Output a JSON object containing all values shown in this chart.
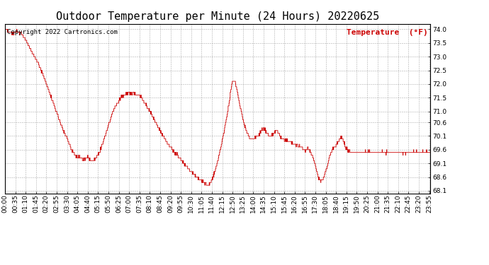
{
  "title": "Outdoor Temperature per Minute (24 Hours) 20220625",
  "copyright_text": "Copyright 2022 Cartronics.com",
  "legend_label": "Temperature  (°F)",
  "line_color": "#cc0000",
  "background_color": "#ffffff",
  "grid_color": "#999999",
  "ylim": [
    68.0,
    74.2
  ],
  "yticks": [
    68.1,
    68.6,
    69.1,
    69.6,
    70.1,
    70.6,
    71.0,
    71.5,
    72.0,
    72.5,
    73.0,
    73.5,
    74.0
  ],
  "title_fontsize": 11,
  "axis_fontsize": 6.5,
  "copyright_fontsize": 6.5,
  "legend_fontsize": 8,
  "figwidth": 6.9,
  "figheight": 3.75,
  "dpi": 100
}
